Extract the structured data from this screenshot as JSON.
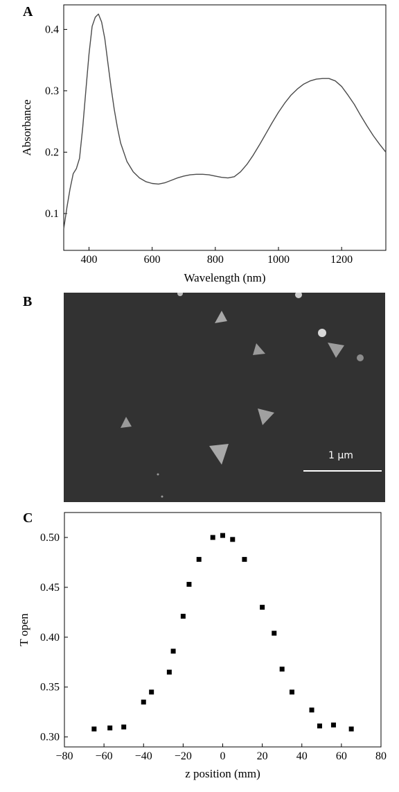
{
  "panels": {
    "a": "A",
    "b": "B",
    "c": "C"
  },
  "chart_data": [
    {
      "type": "line",
      "xlabel": "Wavelength (nm)",
      "ylabel": "Absorbance",
      "xlim": [
        320,
        1340
      ],
      "ylim": [
        0.04,
        0.44
      ],
      "xticks": [
        400,
        600,
        800,
        1000,
        1200
      ],
      "yticks": [
        0.1,
        0.2,
        0.3,
        0.4
      ],
      "grid": false,
      "x": [
        320,
        330,
        340,
        350,
        360,
        370,
        380,
        390,
        400,
        410,
        420,
        430,
        440,
        450,
        460,
        470,
        480,
        490,
        500,
        520,
        540,
        560,
        580,
        600,
        620,
        640,
        660,
        680,
        700,
        720,
        740,
        760,
        780,
        800,
        820,
        840,
        860,
        880,
        900,
        920,
        940,
        960,
        980,
        1000,
        1020,
        1040,
        1060,
        1080,
        1100,
        1120,
        1140,
        1160,
        1180,
        1200,
        1220,
        1240,
        1260,
        1280,
        1300,
        1320,
        1340
      ],
      "y": [
        0.075,
        0.11,
        0.14,
        0.165,
        0.173,
        0.19,
        0.24,
        0.3,
        0.36,
        0.405,
        0.42,
        0.425,
        0.412,
        0.385,
        0.345,
        0.305,
        0.27,
        0.24,
        0.215,
        0.185,
        0.168,
        0.158,
        0.152,
        0.149,
        0.148,
        0.15,
        0.154,
        0.158,
        0.161,
        0.163,
        0.164,
        0.164,
        0.163,
        0.161,
        0.159,
        0.158,
        0.16,
        0.168,
        0.18,
        0.195,
        0.212,
        0.23,
        0.248,
        0.265,
        0.28,
        0.293,
        0.303,
        0.311,
        0.316,
        0.319,
        0.32,
        0.32,
        0.316,
        0.307,
        0.293,
        0.278,
        0.26,
        0.243,
        0.227,
        0.213,
        0.2
      ]
    },
    {
      "type": "scatter",
      "xlabel": "z position (mm)",
      "ylabel": "T open",
      "xlim": [
        -80,
        80
      ],
      "ylim": [
        0.29,
        0.525
      ],
      "xticks": [
        -80,
        -60,
        -40,
        -20,
        0,
        20,
        40,
        60,
        80
      ],
      "yticks": [
        0.3,
        0.35,
        0.4,
        0.45,
        0.5
      ],
      "ytick_labels": [
        "0.30",
        "0.35",
        "0.40",
        "0.45",
        "0.50"
      ],
      "grid": false,
      "x": [
        -65,
        -57,
        -50,
        -40,
        -36,
        -27,
        -25,
        -20,
        -17,
        -12,
        -5,
        0,
        5,
        11,
        20,
        26,
        30,
        35,
        45,
        49,
        56,
        65
      ],
      "y": [
        0.308,
        0.309,
        0.31,
        0.335,
        0.345,
        0.365,
        0.386,
        0.421,
        0.453,
        0.478,
        0.5,
        0.502,
        0.498,
        0.478,
        0.43,
        0.404,
        0.368,
        0.345,
        0.327,
        0.311,
        0.312,
        0.308
      ]
    }
  ],
  "sem": {
    "scale_label": "1 µm",
    "background": "#323232",
    "particle_color": "#a8a8a8"
  }
}
